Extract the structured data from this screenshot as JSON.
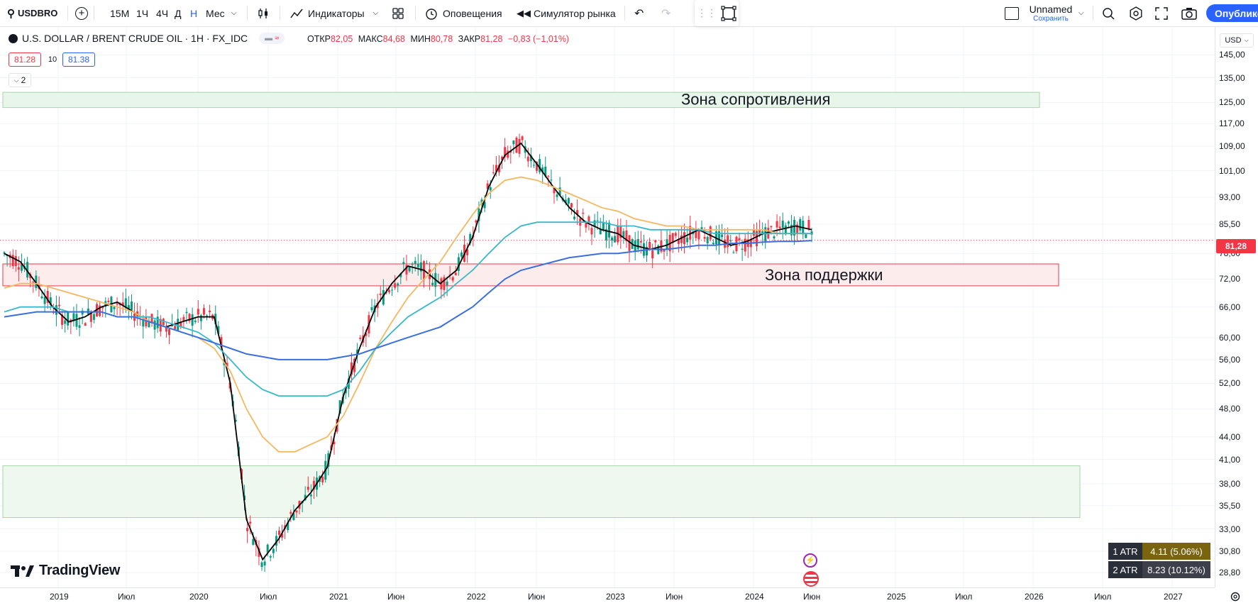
{
  "toolbar": {
    "symbol": "USDBRO",
    "timeframes": [
      "15М",
      "1Ч",
      "4Ч",
      "Д",
      "Н",
      "Мес"
    ],
    "indicators_label": "Индикаторы",
    "alerts_label": "Оповещения",
    "replay_label": "Симулятор рынка",
    "layout_name": "Unnamed",
    "layout_save": "Сохранить",
    "publish_label": "Опублико"
  },
  "legend": {
    "title": "U.S. DOLLAR / BRENT CRUDE OIL · 1H · FX_IDC",
    "open_label": "ОТКР",
    "open": "82,05",
    "high_label": "МАКС",
    "high": "84,68",
    "low_label": "МИН",
    "low": "80,78",
    "close_label": "ЗАКР",
    "close": "81,28",
    "change": "−0,83 (−1,01%)",
    "bid": "81.28",
    "spread": "10",
    "ask": "81.38",
    "indicators_count": "2"
  },
  "currency": "USD",
  "zones": {
    "resistance": "Зона сопротивления",
    "support": "Зона поддержки"
  },
  "price_label": "81,28",
  "atr": [
    {
      "label": "1 ATR",
      "value": "4.11 (5.06%)"
    },
    {
      "label": "2 ATR",
      "value": "8.23 (10.12%)"
    }
  ],
  "watermark": "TradingView",
  "chart_data": {
    "type": "candlestick",
    "y_scale": "log",
    "ylim": [
      27.5,
      150
    ],
    "y_ticks": [
      "145,00",
      "135,00",
      "125,00",
      "117,00",
      "109,00",
      "101,00",
      "93,00",
      "85,50",
      "78,00",
      "72,00",
      "66,00",
      "60,00",
      "56,00",
      "52,00",
      "48,00",
      "44,00",
      "41,00",
      "38,00",
      "35,50",
      "33,00",
      "30,80",
      "28,80"
    ],
    "x_ticks": [
      "2019",
      "Июл",
      "2020",
      "Июл",
      "2021",
      "Июн",
      "2022",
      "Июн",
      "2023",
      "Июн",
      "2024",
      "Июн",
      "2025",
      "Июл",
      "2026",
      "Июл",
      "2027"
    ],
    "last_price": 81.28,
    "zones": [
      {
        "name": "Зона сопротивления",
        "from": 123,
        "to": 129,
        "color": "#e8f5e9"
      },
      {
        "name": "Зона поддержки",
        "from": 70.5,
        "to": 75.5,
        "color": "#fdecec"
      },
      {
        "name": "",
        "from": 34.2,
        "to": 40.2,
        "color": "#eef8ee"
      }
    ],
    "series": [
      {
        "name": "",
        "color": "#000000",
        "values": [
          78,
          76,
          71,
          66,
          63,
          64,
          66,
          67,
          65,
          63,
          62,
          63,
          64,
          64,
          52,
          34,
          30,
          32,
          35,
          37,
          40,
          50,
          58,
          66,
          71,
          75,
          74,
          71,
          74,
          82,
          96,
          106,
          110,
          103,
          96,
          90,
          86,
          84,
          83,
          80,
          79,
          80,
          82,
          84,
          82,
          80,
          81,
          83,
          84,
          85,
          84
        ]
      },
      {
        "name": "",
        "color": "#f4b860",
        "values": [
          70,
          71,
          71,
          70,
          69,
          68,
          67,
          66,
          65,
          63,
          62,
          61,
          60,
          58,
          54,
          48,
          44,
          42,
          42,
          43,
          44,
          47,
          52,
          58,
          63,
          68,
          72,
          76,
          82,
          88,
          94,
          98,
          99,
          98,
          96,
          94,
          92,
          90,
          89,
          87,
          86,
          85,
          85,
          84,
          84,
          84,
          84,
          84,
          83,
          83,
          83
        ]
      },
      {
        "name": "",
        "color": "#39b8c9",
        "values": [
          65,
          66,
          66,
          66,
          65,
          65,
          65,
          64,
          64,
          64,
          63,
          62,
          61,
          59,
          56,
          53,
          51,
          50,
          50,
          50,
          50,
          51,
          54,
          58,
          61,
          64,
          66,
          68,
          71,
          74,
          78,
          82,
          85,
          86,
          86,
          86,
          86,
          86,
          85,
          85,
          84,
          84,
          84,
          84,
          83,
          83,
          83,
          83,
          83,
          83,
          83
        ]
      },
      {
        "name": "",
        "color": "#3b6fe0",
        "values": [
          64,
          64.5,
          65,
          65,
          65,
          65,
          65,
          64,
          64,
          63,
          62,
          61,
          60,
          59,
          58,
          57,
          56.5,
          56,
          56,
          56,
          56,
          56.5,
          57,
          58,
          59,
          60,
          61,
          62,
          64,
          66,
          69,
          72,
          74,
          75,
          76,
          77,
          77.5,
          78,
          78,
          78.5,
          79,
          79,
          79.5,
          80,
          80,
          80.5,
          80.5,
          80.8,
          81,
          81,
          81.2
        ]
      }
    ]
  }
}
